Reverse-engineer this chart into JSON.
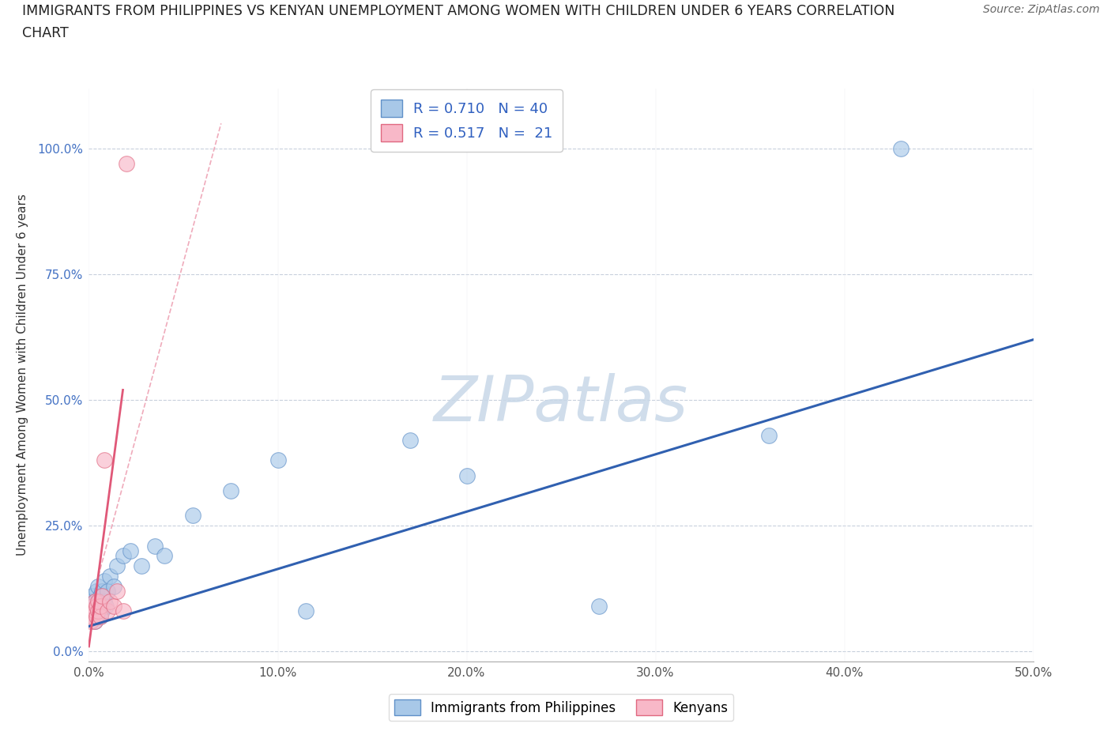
{
  "title_line1": "IMMIGRANTS FROM PHILIPPINES VS KENYAN UNEMPLOYMENT AMONG WOMEN WITH CHILDREN UNDER 6 YEARS CORRELATION",
  "title_line2": "CHART",
  "source": "Source: ZipAtlas.com",
  "ylabel": "Unemployment Among Women with Children Under 6 years",
  "xlim": [
    0,
    0.5
  ],
  "ylim": [
    -0.02,
    1.12
  ],
  "xticks": [
    0.0,
    0.1,
    0.2,
    0.3,
    0.4,
    0.5
  ],
  "xticklabels": [
    "0.0%",
    "10.0%",
    "20.0%",
    "30.0%",
    "40.0%",
    "50.0%"
  ],
  "yticks": [
    0.0,
    0.25,
    0.5,
    0.75,
    1.0
  ],
  "yticklabels": [
    "0.0%",
    "25.0%",
    "50.0%",
    "75.0%",
    "100.0%"
  ],
  "r_blue": 0.71,
  "n_blue": 40,
  "r_pink": 0.517,
  "n_pink": 21,
  "blue_scatter_color": "#a8c8e8",
  "blue_edge_color": "#6090c8",
  "pink_scatter_color": "#f8b8c8",
  "pink_edge_color": "#e06880",
  "blue_line_color": "#3060b0",
  "pink_line_color": "#e05878",
  "watermark_color": "#c8d8e8",
  "blue_scatter_x": [
    0.001,
    0.001,
    0.002,
    0.002,
    0.002,
    0.003,
    0.003,
    0.003,
    0.004,
    0.004,
    0.004,
    0.005,
    0.005,
    0.005,
    0.006,
    0.006,
    0.006,
    0.007,
    0.007,
    0.008,
    0.008,
    0.009,
    0.01,
    0.011,
    0.013,
    0.015,
    0.018,
    0.022,
    0.028,
    0.035,
    0.04,
    0.055,
    0.075,
    0.1,
    0.115,
    0.17,
    0.2,
    0.27,
    0.36,
    0.43
  ],
  "blue_scatter_y": [
    0.08,
    0.1,
    0.07,
    0.09,
    0.11,
    0.06,
    0.08,
    0.1,
    0.07,
    0.09,
    0.12,
    0.08,
    0.1,
    0.13,
    0.07,
    0.09,
    0.11,
    0.08,
    0.12,
    0.1,
    0.14,
    0.09,
    0.12,
    0.15,
    0.13,
    0.17,
    0.19,
    0.2,
    0.17,
    0.21,
    0.19,
    0.27,
    0.32,
    0.38,
    0.08,
    0.42,
    0.35,
    0.09,
    0.43,
    1.0
  ],
  "pink_scatter_x": [
    0.001,
    0.001,
    0.002,
    0.002,
    0.003,
    0.003,
    0.003,
    0.004,
    0.004,
    0.005,
    0.005,
    0.006,
    0.006,
    0.007,
    0.008,
    0.01,
    0.011,
    0.013,
    0.015,
    0.018,
    0.02
  ],
  "pink_scatter_y": [
    0.06,
    0.08,
    0.07,
    0.09,
    0.06,
    0.08,
    0.1,
    0.07,
    0.09,
    0.08,
    0.1,
    0.07,
    0.09,
    0.11,
    0.38,
    0.08,
    0.1,
    0.09,
    0.12,
    0.08,
    0.97
  ],
  "blue_trend_x0": 0.0,
  "blue_trend_y0": 0.05,
  "blue_trend_x1": 0.5,
  "blue_trend_y1": 0.62,
  "pink_trend_solid_x0": 0.0,
  "pink_trend_solid_y0": 0.01,
  "pink_trend_solid_x1": 0.018,
  "pink_trend_solid_y1": 0.52,
  "pink_trend_dash_x0": 0.005,
  "pink_trend_dash_y0": 0.15,
  "pink_trend_dash_x1": 0.07,
  "pink_trend_dash_y1": 1.05
}
